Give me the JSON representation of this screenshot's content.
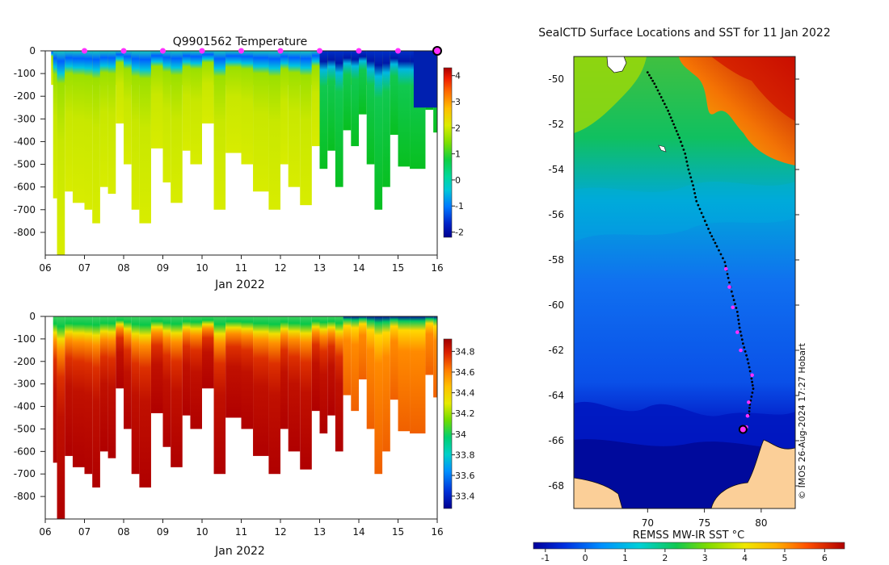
{
  "chart_data": [
    {
      "type": "heatmap",
      "title": "Q9901562  Temperature",
      "xlabel": "Jan 2022",
      "ylabel": "",
      "x_ticks": [
        "06",
        "07",
        "08",
        "09",
        "10",
        "11",
        "12",
        "13",
        "14",
        "15",
        "16"
      ],
      "x_range": [
        6,
        16
      ],
      "y_ticks": [
        0,
        -100,
        -200,
        -300,
        -400,
        -500,
        -600,
        -700,
        -800
      ],
      "ylim": [
        -900,
        0
      ],
      "colorbar": {
        "ticks": [
          4,
          3,
          2,
          1,
          0,
          -1,
          -2
        ],
        "range": [
          -2.2,
          4.3
        ]
      },
      "surface_markers_day": [
        7,
        8,
        9,
        10,
        11,
        12,
        13,
        14,
        15
      ],
      "current_position_day": 16,
      "profiles": [
        {
          "t": 6.2,
          "d": 650
        },
        {
          "t": 6.3,
          "d": 900
        },
        {
          "t": 6.5,
          "d": 620
        },
        {
          "t": 6.7,
          "d": 670
        },
        {
          "t": 7.0,
          "d": 700
        },
        {
          "t": 7.2,
          "d": 760
        },
        {
          "t": 7.4,
          "d": 600
        },
        {
          "t": 7.6,
          "d": 630
        },
        {
          "t": 7.8,
          "d": 320
        },
        {
          "t": 8.0,
          "d": 500
        },
        {
          "t": 8.2,
          "d": 700
        },
        {
          "t": 8.4,
          "d": 760
        },
        {
          "t": 8.7,
          "d": 430
        },
        {
          "t": 9.0,
          "d": 580
        },
        {
          "t": 9.2,
          "d": 670
        },
        {
          "t": 9.5,
          "d": 440
        },
        {
          "t": 9.7,
          "d": 500
        },
        {
          "t": 10.0,
          "d": 320
        },
        {
          "t": 10.3,
          "d": 700
        },
        {
          "t": 10.6,
          "d": 450
        },
        {
          "t": 11.0,
          "d": 500
        },
        {
          "t": 11.3,
          "d": 620
        },
        {
          "t": 11.7,
          "d": 700
        },
        {
          "t": 12.0,
          "d": 500
        },
        {
          "t": 12.2,
          "d": 600
        },
        {
          "t": 12.5,
          "d": 680
        },
        {
          "t": 12.8,
          "d": 420
        },
        {
          "t": 13.0,
          "d": 520
        },
        {
          "t": 13.2,
          "d": 440
        },
        {
          "t": 13.4,
          "d": 600
        },
        {
          "t": 13.6,
          "d": 350
        },
        {
          "t": 13.8,
          "d": 420
        },
        {
          "t": 14.0,
          "d": 280
        },
        {
          "t": 14.2,
          "d": 500
        },
        {
          "t": 14.4,
          "d": 700
        },
        {
          "t": 14.6,
          "d": 600
        },
        {
          "t": 14.8,
          "d": 370
        },
        {
          "t": 15.0,
          "d": 510
        },
        {
          "t": 15.3,
          "d": 520
        },
        {
          "t": 15.7,
          "d": 260
        },
        {
          "t": 15.9,
          "d": 360
        }
      ]
    },
    {
      "type": "heatmap",
      "title": "",
      "xlabel": "Jan 2022",
      "ylabel": "",
      "x_ticks": [
        "06",
        "07",
        "08",
        "09",
        "10",
        "11",
        "12",
        "13",
        "14",
        "15",
        "16"
      ],
      "x_range": [
        6,
        16
      ],
      "y_ticks": [
        0,
        -100,
        -200,
        -300,
        -400,
        -500,
        -600,
        -700,
        -800
      ],
      "ylim": [
        -900,
        0
      ],
      "colorbar": {
        "ticks": [
          "34.8",
          "34.6",
          "34.4",
          "34.2",
          "34",
          "33.8",
          "33.6",
          "33.4"
        ],
        "range": [
          33.28,
          34.92
        ]
      }
    },
    {
      "type": "heatmap",
      "title": "SealCTD Surface Locations and SST for 11 Jan 2022",
      "xlabel": "",
      "ylabel": "",
      "x_ticks": [
        "70",
        "75",
        "80"
      ],
      "x_range": [
        63.5,
        83
      ],
      "y_ticks": [
        "-50",
        "-52",
        "-54",
        "-56",
        "-58",
        "-60",
        "-62",
        "-64",
        "-66",
        "-68"
      ],
      "ylim": [
        -69,
        -49
      ],
      "colorbar": {
        "label": "REMSS MW-IR SST °C",
        "ticks": [
          "-1",
          "0",
          "1",
          "2",
          "3",
          "4",
          "5",
          "6"
        ],
        "range": [
          -1.3,
          6.5
        ]
      },
      "track": [
        {
          "lon": 70.0,
          "lat": -49.7
        },
        {
          "lon": 70.6,
          "lat": -50.2
        },
        {
          "lon": 71.2,
          "lat": -50.8
        },
        {
          "lon": 71.8,
          "lat": -51.4
        },
        {
          "lon": 72.3,
          "lat": -52.0
        },
        {
          "lon": 72.8,
          "lat": -52.6
        },
        {
          "lon": 73.3,
          "lat": -53.3
        },
        {
          "lon": 73.6,
          "lat": -54.0
        },
        {
          "lon": 74.0,
          "lat": -54.7
        },
        {
          "lon": 74.3,
          "lat": -55.4
        },
        {
          "lon": 74.9,
          "lat": -56.1
        },
        {
          "lon": 75.5,
          "lat": -56.8
        },
        {
          "lon": 76.1,
          "lat": -57.4
        },
        {
          "lon": 76.8,
          "lat": -58.1
        },
        {
          "lon": 77.1,
          "lat": -58.8
        },
        {
          "lon": 77.5,
          "lat": -59.6
        },
        {
          "lon": 77.9,
          "lat": -60.3
        },
        {
          "lon": 78.1,
          "lat": -61.0
        },
        {
          "lon": 78.4,
          "lat": -61.7
        },
        {
          "lon": 78.8,
          "lat": -62.4
        },
        {
          "lon": 79.1,
          "lat": -63.1
        },
        {
          "lon": 79.3,
          "lat": -63.7
        },
        {
          "lon": 79.0,
          "lat": -64.4
        },
        {
          "lon": 78.9,
          "lat": -65.0
        }
      ],
      "daily_positions": [
        {
          "lon": 76.9,
          "lat": -58.4
        },
        {
          "lon": 77.2,
          "lat": -59.2
        },
        {
          "lon": 77.5,
          "lat": -60.1
        },
        {
          "lon": 77.9,
          "lat": -61.2
        },
        {
          "lon": 78.2,
          "lat": -62.0
        },
        {
          "lon": 79.2,
          "lat": -63.1
        },
        {
          "lon": 78.9,
          "lat": -64.3
        },
        {
          "lon": 78.8,
          "lat": -64.9
        },
        {
          "lon": 78.7,
          "lat": -65.4
        }
      ],
      "current_position": {
        "lon": 78.4,
        "lat": -65.5
      },
      "attribution": "© IMOS 26-Aug-2024 17:27 Hobart"
    }
  ]
}
